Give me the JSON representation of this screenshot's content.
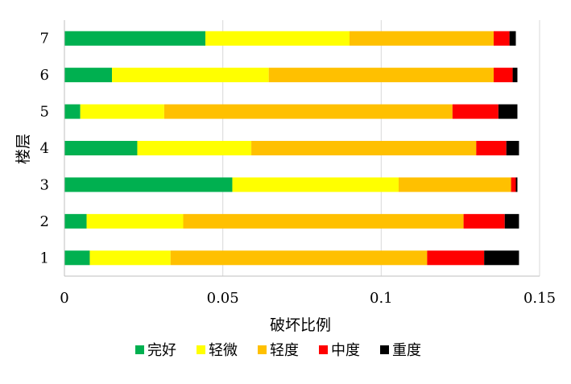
{
  "chart_data": {
    "type": "bar",
    "orientation": "horizontal",
    "stacked": true,
    "categories": [
      "1",
      "2",
      "3",
      "4",
      "5",
      "6",
      "7"
    ],
    "series": [
      {
        "name": "完好",
        "color": "#00b050",
        "values": [
          0.008,
          0.007,
          0.053,
          0.023,
          0.005,
          0.015,
          0.0445
        ]
      },
      {
        "name": "轻微",
        "color": "#ffff00",
        "values": [
          0.0255,
          0.0305,
          0.0525,
          0.036,
          0.0265,
          0.0495,
          0.0455
        ]
      },
      {
        "name": "轻度",
        "color": "#ffc000",
        "values": [
          0.081,
          0.0885,
          0.0355,
          0.071,
          0.091,
          0.071,
          0.0455
        ]
      },
      {
        "name": "中度",
        "color": "#ff0000",
        "values": [
          0.018,
          0.013,
          0.0015,
          0.0095,
          0.0145,
          0.006,
          0.005
        ]
      },
      {
        "name": "重度",
        "color": "#000000",
        "values": [
          0.011,
          0.0045,
          0.0005,
          0.004,
          0.006,
          0.0015,
          0.002
        ]
      }
    ],
    "xlabel": "破坏比例",
    "ylabel": "楼层",
    "xlim": [
      0,
      0.15
    ],
    "xticks": [
      "0",
      "0.05",
      "0.1",
      "0.15"
    ],
    "xtick_values": [
      0,
      0.05,
      0.1,
      0.15
    ],
    "grid": "vertical",
    "legend_position": "bottom"
  }
}
